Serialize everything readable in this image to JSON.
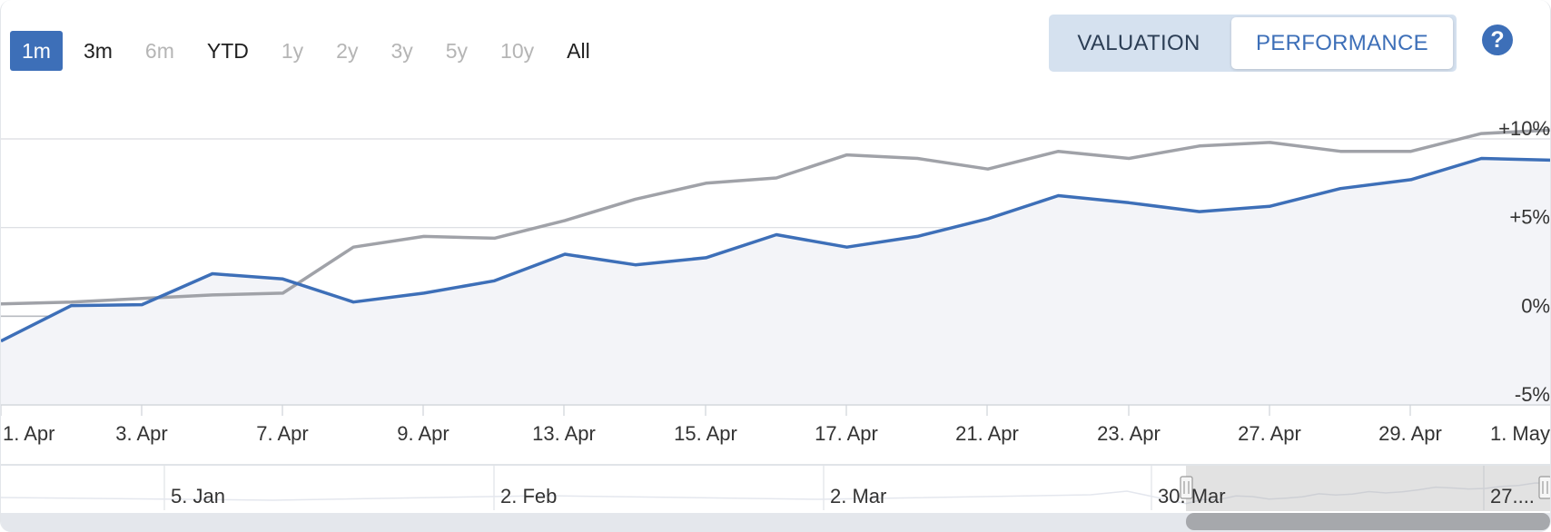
{
  "range_selector": {
    "buttons": [
      {
        "label": "1m",
        "state": "active"
      },
      {
        "label": "3m",
        "state": "enabled"
      },
      {
        "label": "6m",
        "state": "disabled"
      },
      {
        "label": "YTD",
        "state": "enabled"
      },
      {
        "label": "1y",
        "state": "disabled"
      },
      {
        "label": "2y",
        "state": "disabled"
      },
      {
        "label": "3y",
        "state": "disabled"
      },
      {
        "label": "5y",
        "state": "disabled"
      },
      {
        "label": "10y",
        "state": "disabled"
      },
      {
        "label": "All",
        "state": "enabled"
      }
    ]
  },
  "view_toggle": {
    "valuation_label": "VALUATION",
    "performance_label": "PERFORMANCE",
    "selected": "PERFORMANCE"
  },
  "help": {
    "label": "?"
  },
  "colors": {
    "primary_series": "#3d6fb8",
    "comparison_series": "#a0a2a8",
    "area_fill": "#f3f4f8",
    "accent": "#3d6fb8",
    "toggle_bg": "#d5e1ef"
  },
  "chart_data": {
    "type": "line",
    "x_tick_labels": [
      "1. Apr",
      "3. Apr",
      "7. Apr",
      "9. Apr",
      "13. Apr",
      "15. Apr",
      "17. Apr",
      "21. Apr",
      "23. Apr",
      "27. Apr",
      "29. Apr",
      "1. May"
    ],
    "y_tick_labels": [
      "+10%",
      "+5%",
      "0%",
      "-5%"
    ],
    "y_ticks": [
      10,
      5,
      0,
      -5
    ],
    "ylim": [
      -5,
      10
    ],
    "grid": true,
    "series": [
      {
        "role": "primary",
        "area": true,
        "values": [
          -1.4,
          0.6,
          0.65,
          2.4,
          2.1,
          0.8,
          1.3,
          2.0,
          3.5,
          2.9,
          3.3,
          4.6,
          3.9,
          4.5,
          5.5,
          6.8,
          6.4,
          5.9,
          6.2,
          7.2,
          7.7,
          8.9,
          8.8
        ]
      },
      {
        "role": "comparison",
        "area": false,
        "values": [
          0.7,
          0.8,
          1.0,
          1.2,
          1.3,
          3.9,
          4.5,
          4.4,
          5.4,
          6.6,
          7.5,
          7.8,
          9.1,
          8.9,
          8.3,
          9.3,
          8.9,
          9.6,
          9.8,
          9.3,
          9.3,
          10.3,
          10.5
        ]
      }
    ],
    "navigator": {
      "labels": [
        "5. Jan",
        "2. Feb",
        "2. Mar",
        "30. Mar",
        "27...."
      ],
      "selected_range_start": 0.763,
      "selected_range_end": 1.0
    }
  }
}
